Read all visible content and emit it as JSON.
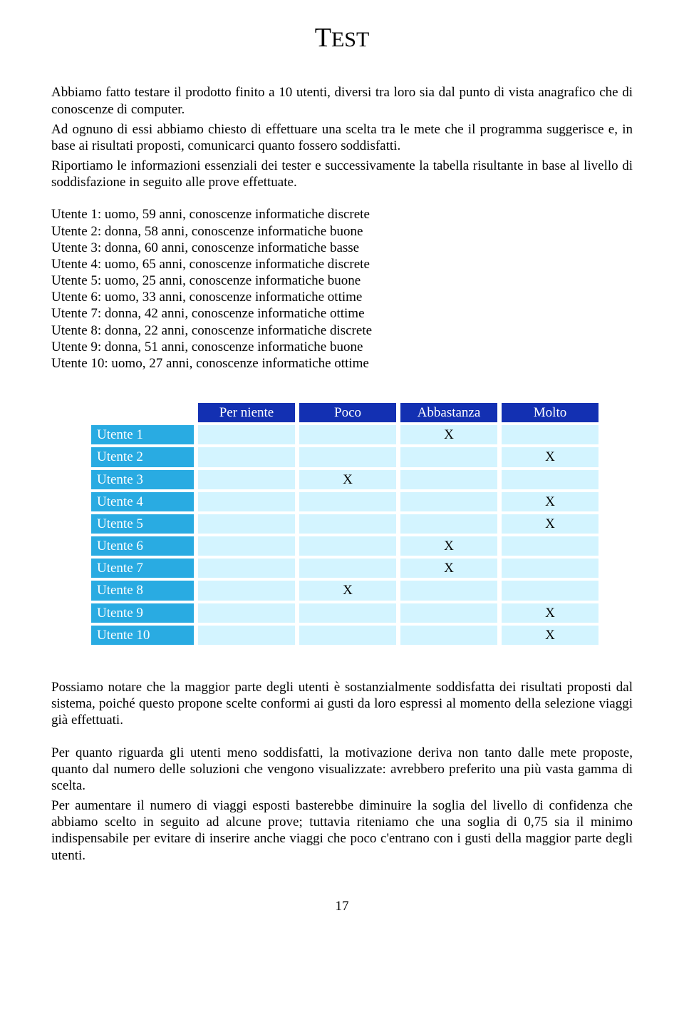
{
  "title_prefix": "T",
  "title_rest": "EST",
  "intro_p1": "Abbiamo fatto testare il prodotto finito a 10 utenti, diversi tra loro sia dal punto di vista anagrafico che di conoscenze di computer.",
  "intro_p2": "Ad ognuno di essi abbiamo chiesto di effettuare una scelta tra le mete che il programma suggerisce e, in base ai risultati proposti, comunicarci quanto fossero soddisfatti.",
  "intro_p3": "Riportiamo le informazioni essenziali dei tester e successivamente la tabella risultante in base al livello di soddisfazione in seguito alle prove effettuate.",
  "users": [
    "Utente 1: uomo, 59 anni, conoscenze informatiche discrete",
    "Utente 2: donna, 58 anni, conoscenze informatiche buone",
    "Utente 3: donna, 60 anni, conoscenze informatiche basse",
    "Utente 4: uomo, 65 anni, conoscenze informatiche discrete",
    "Utente 5: uomo, 25 anni, conoscenze informatiche buone",
    "Utente 6: uomo, 33 anni, conoscenze informatiche ottime",
    "Utente 7: donna, 42 anni, conoscenze informatiche ottime",
    "Utente 8: donna, 22 anni, conoscenze informatiche discrete",
    "Utente 9: donna, 51 anni, conoscenze informatiche buone",
    "Utente 10: uomo, 27 anni, conoscenze informatiche ottime"
  ],
  "table": {
    "colors": {
      "header_bg": "#1330b2",
      "rowlabel_bg": "#29abe2",
      "cell_bg": "#d3f4ff",
      "header_text": "#ffffff",
      "rowlabel_text": "#ffffff",
      "cell_text": "#000000"
    },
    "columns": [
      "Per niente",
      "Poco",
      "Abbastanza",
      "Molto"
    ],
    "rows": [
      {
        "label": "Utente 1",
        "marks": [
          "",
          "",
          "X",
          ""
        ]
      },
      {
        "label": "Utente 2",
        "marks": [
          "",
          "",
          "",
          "X"
        ]
      },
      {
        "label": "Utente 3",
        "marks": [
          "",
          "X",
          "",
          ""
        ]
      },
      {
        "label": "Utente 4",
        "marks": [
          "",
          "",
          "",
          "X"
        ]
      },
      {
        "label": "Utente 5",
        "marks": [
          "",
          "",
          "",
          "X"
        ]
      },
      {
        "label": "Utente 6",
        "marks": [
          "",
          "",
          "X",
          ""
        ]
      },
      {
        "label": "Utente 7",
        "marks": [
          "",
          "",
          "X",
          ""
        ]
      },
      {
        "label": "Utente 8",
        "marks": [
          "",
          "X",
          "",
          ""
        ]
      },
      {
        "label": "Utente 9",
        "marks": [
          "",
          "",
          "",
          "X"
        ]
      },
      {
        "label": "Utente 10",
        "marks": [
          "",
          "",
          "",
          "X"
        ]
      }
    ]
  },
  "outro_p1": "Possiamo notare che la maggior parte degli utenti è sostanzialmente soddisfatta dei risultati proposti dal sistema, poiché questo propone scelte conformi ai gusti da loro espressi al momento della selezione viaggi già effettuati.",
  "outro_p2": "Per quanto riguarda gli utenti meno soddisfatti, la motivazione deriva non tanto dalle mete proposte, quanto dal numero delle soluzioni che vengono visualizzate: avrebbero preferito una più vasta gamma di scelta.",
  "outro_p3": "Per aumentare il numero di viaggi esposti basterebbe diminuire la soglia del livello di confidenza che abbiamo scelto in seguito ad alcune prove; tuttavia riteniamo che una soglia di 0,75 sia il minimo indispensabile per evitare di inserire anche viaggi che poco c'entrano con i gusti della maggior parte degli utenti.",
  "page_number": "17"
}
